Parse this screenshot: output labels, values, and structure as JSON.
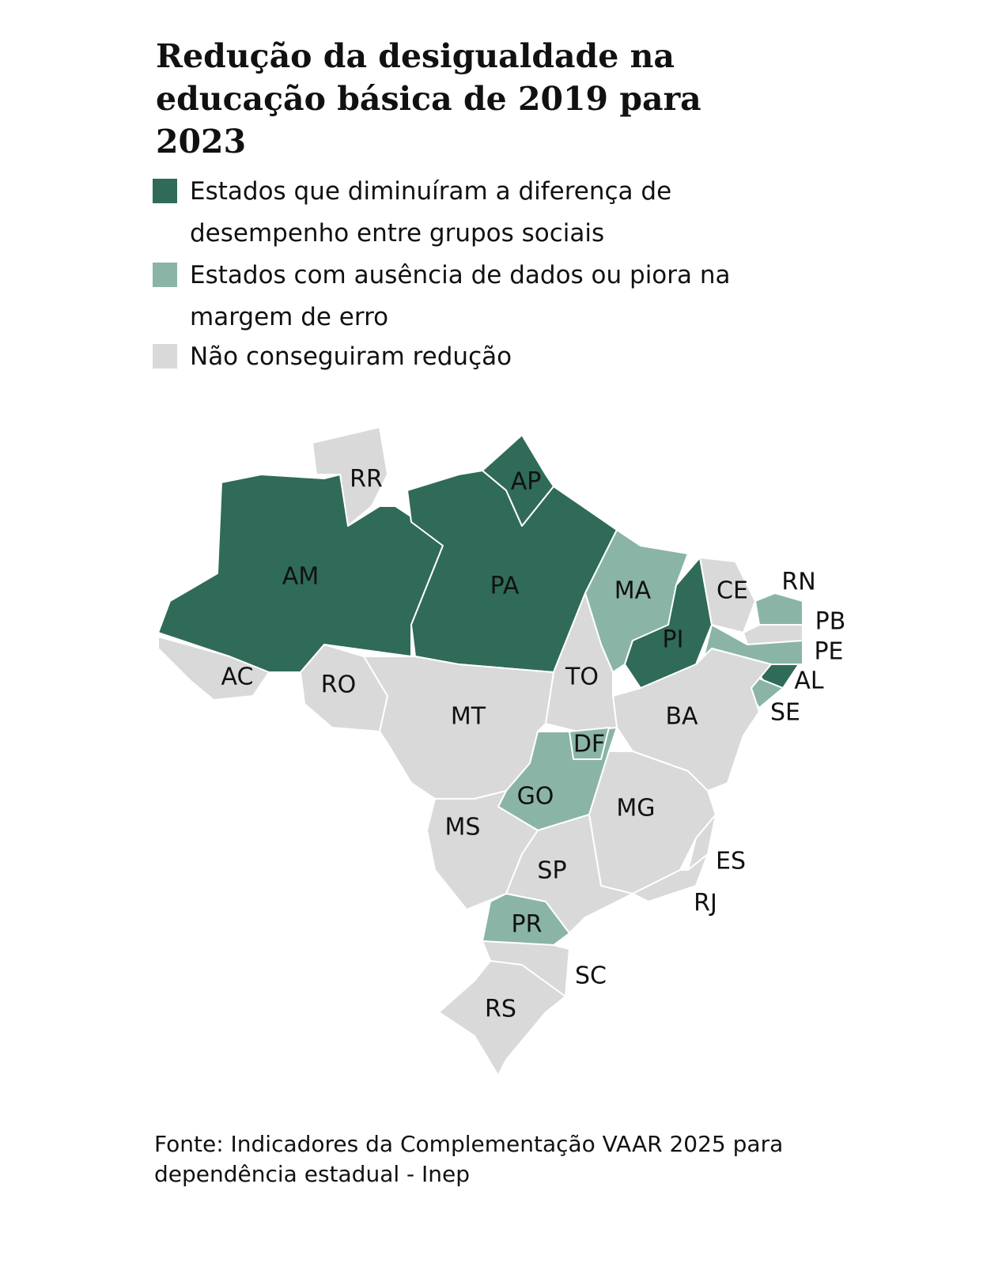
{
  "title": "Redução da desigualdade na educação básica de 2019 para 2023",
  "legend": {
    "items": [
      {
        "label": "Estados que diminuíram a diferença de desempenho entre grupos sociais",
        "color": "#2f6b58",
        "states": [
          "AM",
          "PA",
          "AP",
          "PI",
          "AL"
        ]
      },
      {
        "label": "Estados com ausência de dados ou piora na margem de erro",
        "color": "#8ab5a6",
        "states": [
          "MA",
          "RN",
          "PE",
          "SE",
          "GO",
          "DF",
          "PR"
        ]
      },
      {
        "label": "Não conseguiram redução",
        "color": "#d9d9d9",
        "states": [
          "RR",
          "AC",
          "RO",
          "MT",
          "TO",
          "CE",
          "PB",
          "BA",
          "MG",
          "MS",
          "SP",
          "ES",
          "RJ",
          "SC",
          "RS"
        ]
      }
    ]
  },
  "source": "Fonte: Indicadores da Complementação VAAR 2025 para dependência estadual - Inep"
}
